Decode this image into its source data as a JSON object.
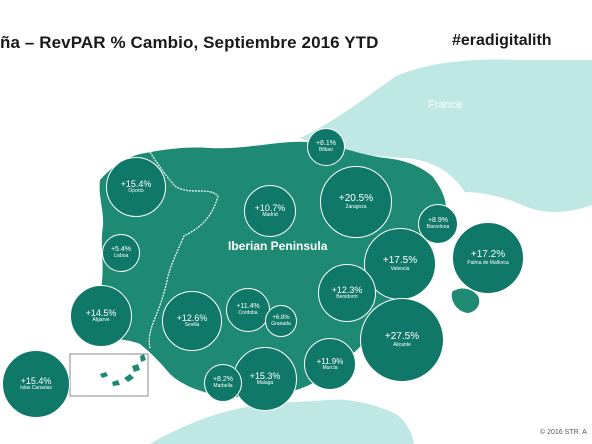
{
  "title": "ña – RevPAR % Cambio, Septiembre 2016 YTD",
  "hashtag": "#eradigitalith",
  "copyright": "© 2016 STR. A",
  "map": {
    "regions": {
      "france": "France",
      "iberia": "Iberian Peninsula"
    },
    "colors": {
      "land": "#1e8a74",
      "neighbor_land": "#bfe8e4",
      "sea": "#ffffff",
      "bubble": "#0f7868",
      "text": "#ffffff"
    }
  },
  "markets": [
    {
      "city": "Oporto",
      "value": "+15.4%"
    },
    {
      "city": "Lisboa",
      "value": "+5.4%"
    },
    {
      "city": "Algarve",
      "value": "+14.5%"
    },
    {
      "city": "Islas Canarias",
      "value": "+15.4%"
    },
    {
      "city": "Bilbao",
      "value": "+8.1%"
    },
    {
      "city": "Madrid",
      "value": "+10.7%"
    },
    {
      "city": "Zaragoza",
      "value": "+20.5%"
    },
    {
      "city": "Barcelona",
      "value": "+8.9%"
    },
    {
      "city": "Valencia",
      "value": "+17.5%"
    },
    {
      "city": "Palma de Mallorca",
      "value": "+17.2%"
    },
    {
      "city": "Benidorm",
      "value": "+12.3%"
    },
    {
      "city": "Sevilla",
      "value": "+12.6%"
    },
    {
      "city": "Cordoba",
      "value": "+11.4%"
    },
    {
      "city": "Granada",
      "value": "+6.8%"
    },
    {
      "city": "Alicante",
      "value": "+27.5%"
    },
    {
      "city": "Murcia",
      "value": "+11.9%"
    },
    {
      "city": "Malaga",
      "value": "+15.3%"
    },
    {
      "city": "Marbella",
      "value": "+8.2%"
    }
  ]
}
